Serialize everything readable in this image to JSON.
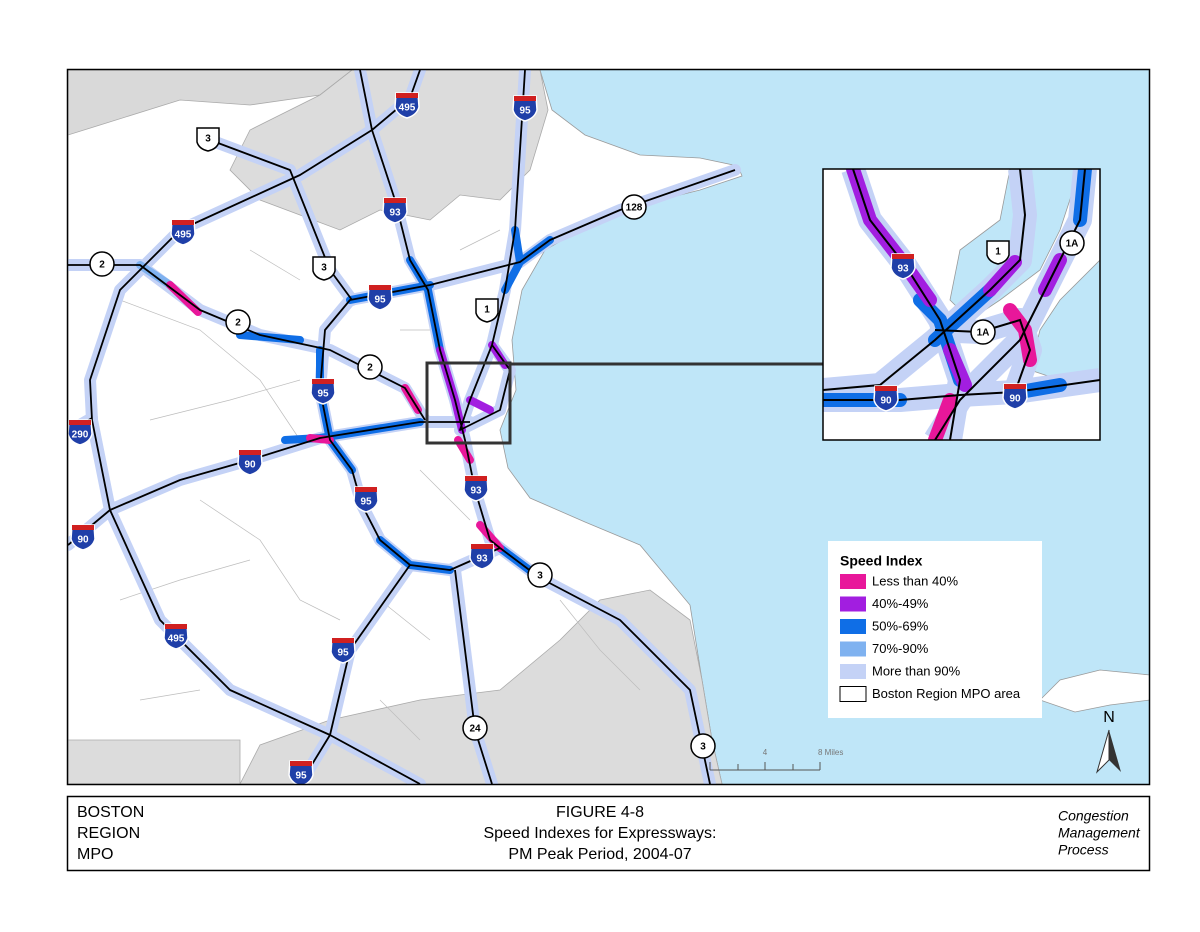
{
  "footer": {
    "left": [
      "BOSTON",
      "REGION",
      "MPO"
    ],
    "center": [
      "FIGURE 4-8",
      "Speed Indexes for Expressways:",
      "PM Peak Period, 2004-07"
    ],
    "right": [
      "Congestion",
      "Management",
      "Process"
    ]
  },
  "legend": {
    "title": "Speed Index",
    "items": [
      {
        "label": "Less than 40%",
        "color": "#e8179a"
      },
      {
        "label": "40%-49%",
        "color": "#a21ee0"
      },
      {
        "label": "50%-69%",
        "color": "#0f6ee6"
      },
      {
        "label": "70%-90%",
        "color": "#7fb2f0"
      },
      {
        "label": "More than 90%",
        "color": "#c4d2f6"
      },
      {
        "label": "Boston Region MPO area",
        "color": "#ffffff"
      }
    ]
  },
  "scale": {
    "mid": "4",
    "end": "8 Miles"
  },
  "north": "N",
  "map": {
    "interstate_shields": [
      "495",
      "95",
      "93",
      "495",
      "95",
      "95",
      "290",
      "90",
      "95",
      "93",
      "93",
      "90",
      "495",
      "95",
      "95"
    ],
    "us_shields": [
      "3",
      "3",
      "1"
    ],
    "state_shields": [
      "128",
      "2",
      "2",
      "2",
      "3",
      "24",
      "3"
    ]
  },
  "inset": {
    "interstate_shields": [
      "93",
      "90",
      "90"
    ],
    "us_shields": [
      "1"
    ],
    "state_shields": [
      "1A",
      "1A"
    ]
  }
}
